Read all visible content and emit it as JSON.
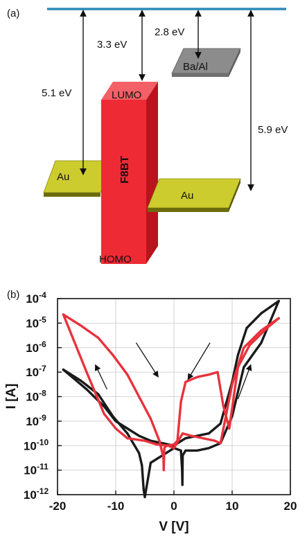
{
  "figure": {
    "panel_a_label": "(a)",
    "panel_b_label": "(b)",
    "energy_diagram": {
      "labels": {
        "gap_left": "5.1 eV",
        "gap_lumo": "3.3 eV",
        "gap_baal": "2.8 eV",
        "gap_right": "5.9 eV",
        "lumo": "LUMO",
        "homo": "HOMO",
        "material": "F8BT",
        "electrode_left": "Au",
        "electrode_right": "Au",
        "top_contact": "Ba/Al"
      },
      "colors": {
        "vacuum": "#2e8ab8",
        "f8bt": "#ef2b36",
        "au": "#c8c82a",
        "baal": "#8a8a8a"
      }
    }
  },
  "chart_data": {
    "type": "line",
    "xlabel": "V [V]",
    "ylabel": "I [A]",
    "x_ticks": [
      "-20",
      "-10",
      "0",
      "10",
      "20"
    ],
    "y_tick_exponents": [
      "-4",
      "-5",
      "-6",
      "-7",
      "-8",
      "-9",
      "-10",
      "-11",
      "-12"
    ],
    "y_tick_base": "10",
    "xlim": [
      -20,
      20
    ],
    "ylim_log10": [
      -12,
      -4
    ],
    "y_scale": "log",
    "grid": true,
    "series": [
      {
        "color": "#1a1a1a",
        "x": [
          -19,
          -16,
          -13,
          -10.5,
          -8,
          -6,
          -5.5,
          -5.2,
          -5.0,
          -4,
          -2,
          0,
          1.2,
          1.4,
          1.45,
          1.5,
          2,
          4,
          6,
          8,
          10,
          12,
          15,
          18
        ],
        "y_log10": [
          -6.9,
          -7.35,
          -7.9,
          -8.8,
          -9.5,
          -10.3,
          -10.8,
          -11.8,
          -12.1,
          -10.7,
          -10.4,
          -10.1,
          -10.2,
          -11.0,
          -11.6,
          -10.4,
          -10.2,
          -10.2,
          -10.1,
          -9.9,
          -8.8,
          -6.8,
          -5.8,
          -4.1
        ]
      },
      {
        "color": "#1a1a1a",
        "x": [
          18,
          15,
          12.5,
          11,
          10,
          8,
          6,
          4,
          2,
          1.3,
          0,
          -2,
          -4,
          -6,
          -8,
          -10,
          -12,
          -15,
          -19
        ],
        "y_log10": [
          -4.1,
          -4.6,
          -5.2,
          -6.3,
          -7.4,
          -9.1,
          -9.5,
          -9.6,
          -9.7,
          -9.8,
          -10.0,
          -9.9,
          -9.8,
          -9.6,
          -9.3,
          -9.0,
          -8.4,
          -7.7,
          -6.9
        ]
      },
      {
        "color": "#e8323c",
        "x": [
          -19,
          -16,
          -13,
          -10.5,
          -8,
          -6,
          -4,
          -2.5,
          -1.8,
          -1.75,
          -1.7,
          -1.65,
          -1.3,
          0,
          0.6,
          1.2,
          2,
          4,
          6,
          7.5,
          8.5,
          9.5,
          11,
          13,
          16,
          18
        ],
        "y_log10": [
          -4.65,
          -5.1,
          -5.6,
          -6.3,
          -7.1,
          -8.0,
          -8.9,
          -9.8,
          -10.5,
          -11.0,
          -10.5,
          -10.1,
          -10.0,
          -9.95,
          -9.8,
          -8.2,
          -7.4,
          -7.2,
          -7.1,
          -7.0,
          -8.4,
          -9.3,
          -6.8,
          -5.9,
          -5.2,
          -4.8
        ]
      },
      {
        "color": "#e8323c",
        "x": [
          18,
          15,
          12,
          10,
          8.5,
          8,
          7,
          5,
          3,
          1.5,
          0.5,
          0,
          -1,
          -3,
          -5,
          -8,
          -10,
          -12,
          -15,
          -19
        ],
        "y_log10": [
          -4.8,
          -5.3,
          -6.0,
          -7.5,
          -9.3,
          -9.9,
          -9.8,
          -9.7,
          -9.6,
          -9.5,
          -9.9,
          -10.1,
          -10.0,
          -9.95,
          -9.8,
          -9.7,
          -9.3,
          -8.7,
          -7.0,
          -4.65
        ]
      }
    ],
    "annotations": [
      {
        "type": "arrow",
        "from": [
          -11.5,
          -7.7
        ],
        "to": [
          -13.5,
          -6.7
        ]
      },
      {
        "type": "arrow",
        "from": [
          -6.5,
          -5.8
        ],
        "to": [
          -2.7,
          -7.2
        ]
      },
      {
        "type": "arrow",
        "from": [
          6.2,
          -5.8
        ],
        "to": [
          2.4,
          -7.3
        ]
      },
      {
        "type": "arrow",
        "from": [
          11.0,
          -8.1
        ],
        "to": [
          13.2,
          -6.7
        ]
      }
    ]
  }
}
